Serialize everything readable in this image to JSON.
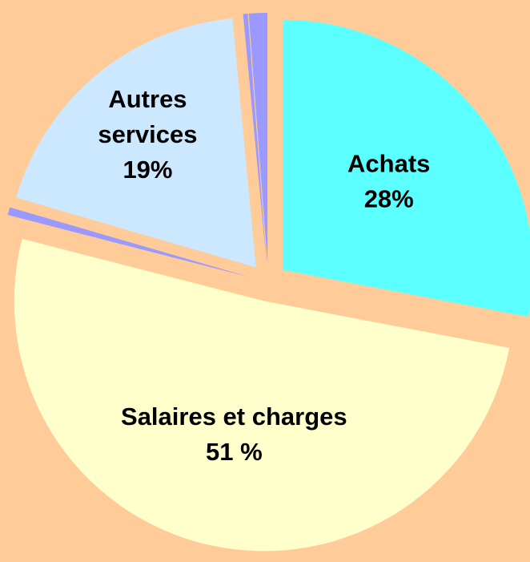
{
  "chart_data": {
    "type": "pie",
    "categories": [
      "Achats",
      "Salaires et charges",
      null,
      "Autres services",
      null,
      null
    ],
    "values": [
      28,
      51,
      0.5,
      19,
      0.3,
      1.2
    ],
    "value_labels": [
      "28%",
      "51 %",
      null,
      "19%",
      null,
      null
    ],
    "colors": [
      "#5cffff",
      "#ffffcc",
      "#9999ff",
      "#cce8ff",
      "#9999ff",
      "#9999ff"
    ],
    "background": "#ffcc99",
    "exploded": true
  }
}
